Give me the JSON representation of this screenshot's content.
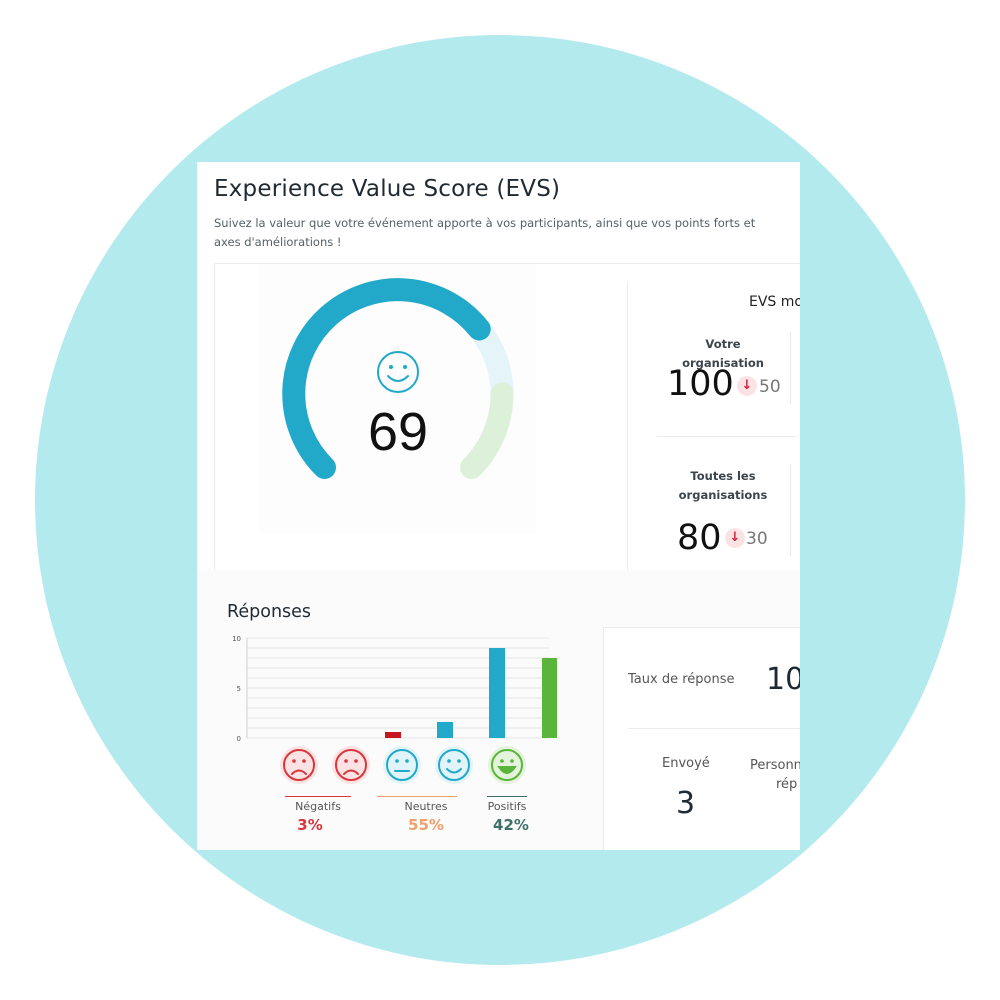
{
  "header": {
    "title": "Experience Value Score (EVS)",
    "subtitle": "Suivez la valeur que votre événement apporte à vos participants, ainsi que vos points forts et axes d'améliorations !"
  },
  "gauge": {
    "score": "69",
    "score_value": 69,
    "icon": "smiley-icon",
    "colors": {
      "main": "#22a9c9",
      "light_blue": "#e4f4f9",
      "light_green": "#ddf1da"
    }
  },
  "evs_panel": {
    "heading": "EVS mo",
    "organisation": {
      "label": "Votre organisation",
      "value": "100",
      "delta": "50",
      "delta_icon": "arrow-down-icon"
    },
    "all_orgs": {
      "label_line1": "Toutes les",
      "label_line2": "organisations",
      "value": "80",
      "delta": "30",
      "delta_icon": "arrow-down-icon"
    }
  },
  "responses": {
    "title": "Réponses",
    "chart_data": {
      "type": "bar",
      "categories": [
        "très négatif",
        "négatif",
        "neutre",
        "positif",
        "très positif"
      ],
      "values": [
        0.6,
        0.6,
        1.6,
        9,
        8
      ],
      "colors": [
        "#c8161d",
        "#c8161d",
        "#22a9c9",
        "#22a9c9",
        "#5ab53a"
      ],
      "ylim": [
        0,
        10
      ],
      "yticks": [
        "0",
        "5",
        "10"
      ],
      "grid": true
    },
    "faces": [
      {
        "icon": "very-sad-face-icon",
        "color": "#d9363e",
        "bg": "#fbe2e3"
      },
      {
        "icon": "sad-face-icon",
        "color": "#d9363e",
        "bg": "#fbe2e3"
      },
      {
        "icon": "neutral-face-icon",
        "color": "#22a9c9",
        "bg": "#e1f4f9"
      },
      {
        "icon": "smiley-face-icon",
        "color": "#22a9c9",
        "bg": "#e1f4f9"
      },
      {
        "icon": "laughing-face-icon",
        "color": "#5ab53a",
        "bg": "#e3f3dc"
      }
    ],
    "groups": [
      {
        "label": "Négatifs",
        "pct": "3%",
        "color": "#d9363e"
      },
      {
        "label": "Neutres",
        "pct": "55%",
        "color": "#f0a06a"
      },
      {
        "label": "Positifs",
        "pct": "42%",
        "color": "#3f6f6a"
      }
    ]
  },
  "rates": {
    "rate_label": "Taux de réponse",
    "rate_value": "10",
    "sent_label": "Envoyé",
    "sent_value": "3",
    "persons_label_line1": "Personn",
    "persons_label_line2": "rép"
  }
}
